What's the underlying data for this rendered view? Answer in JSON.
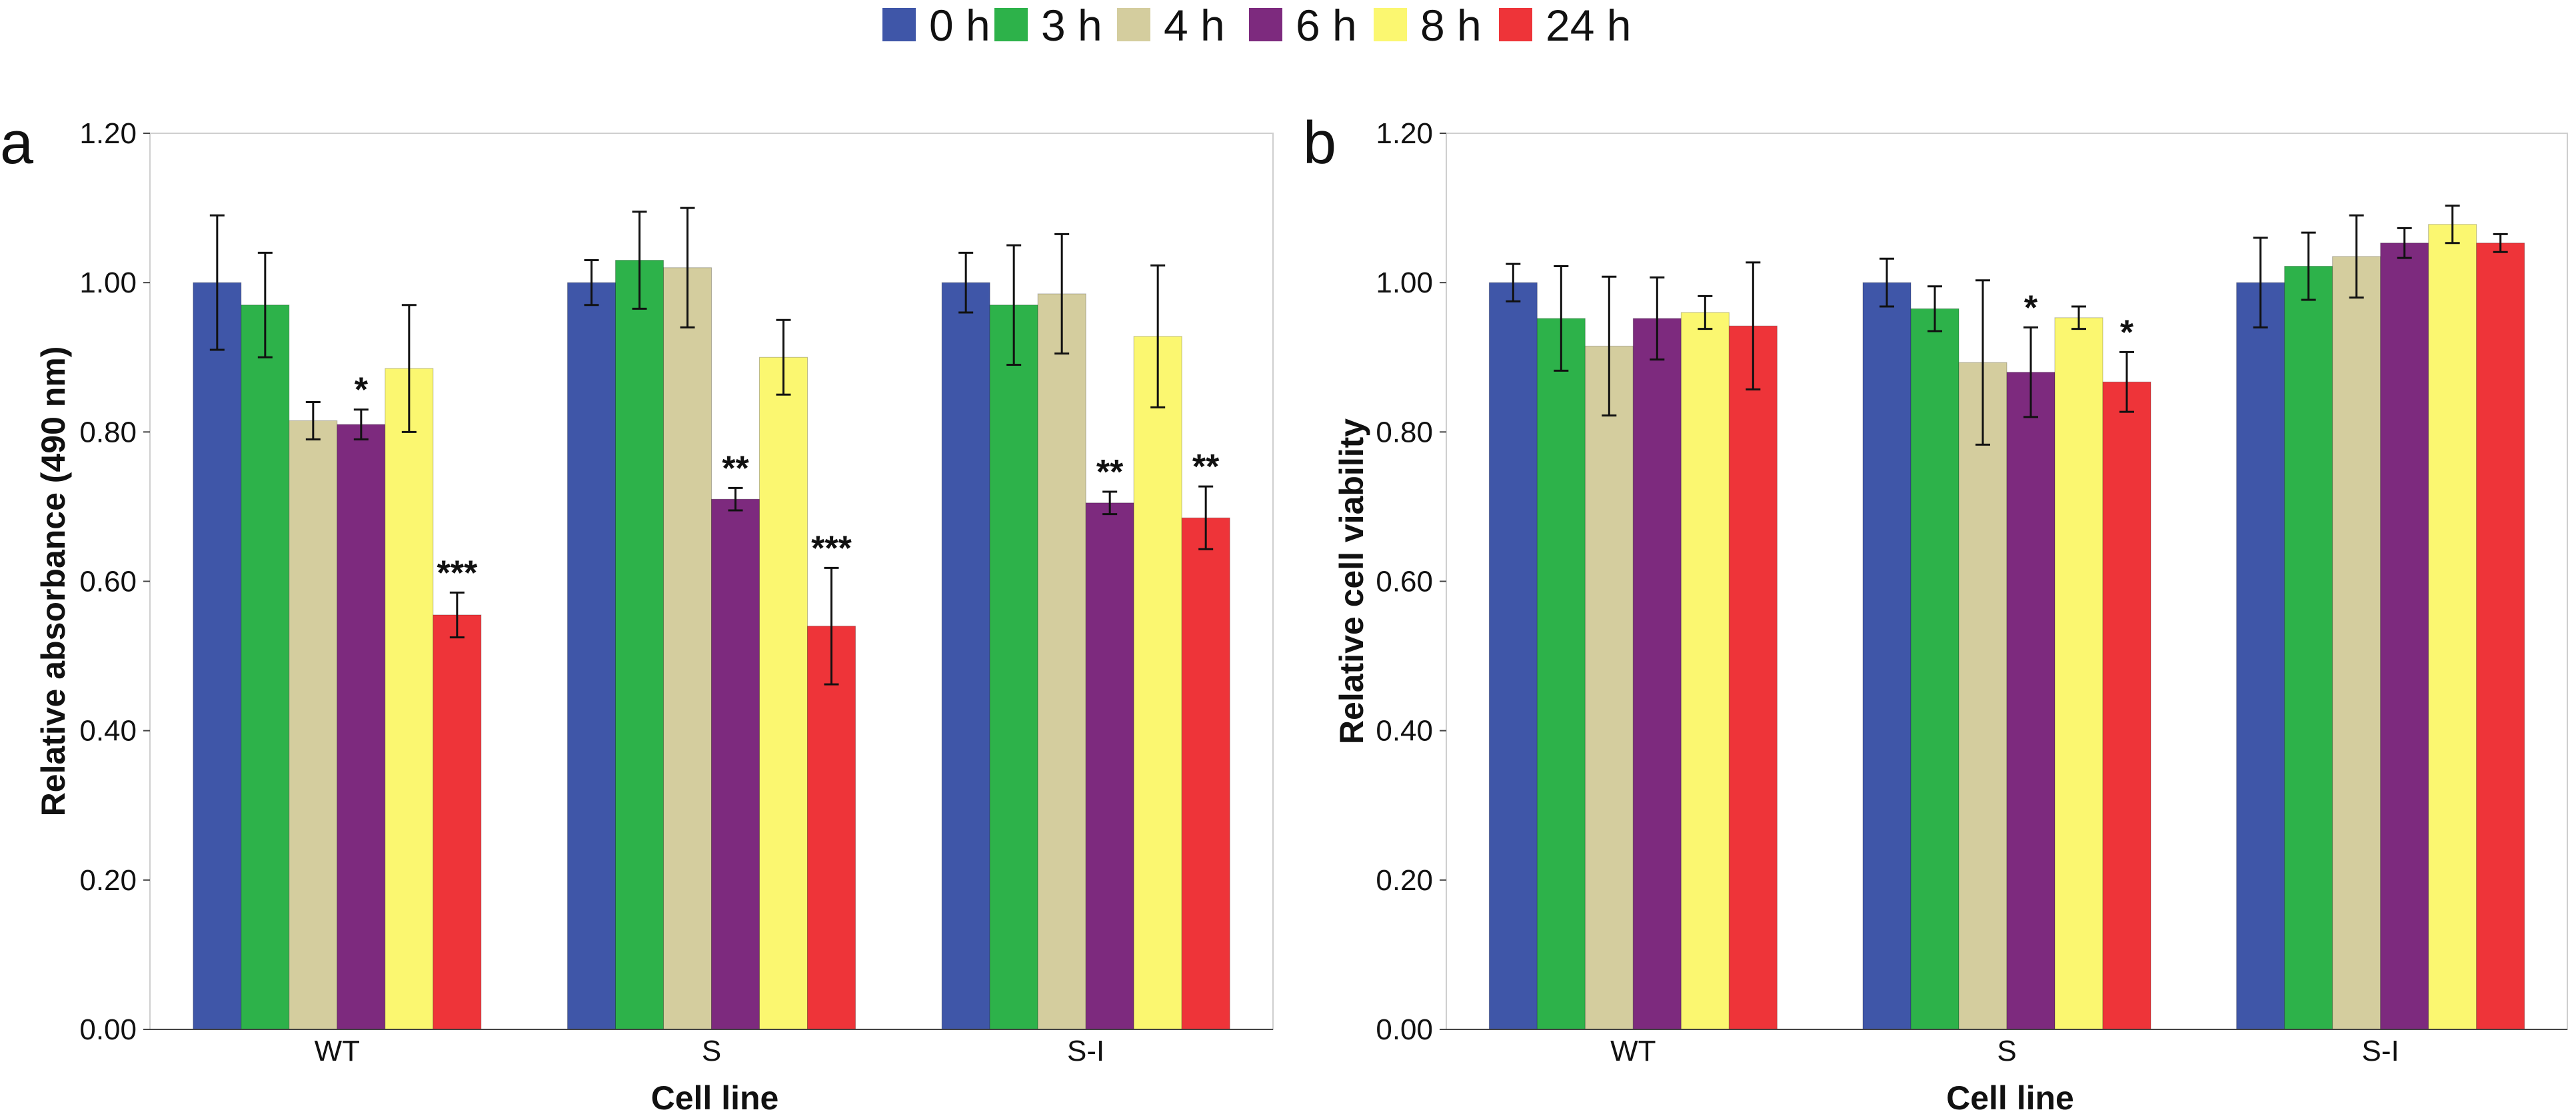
{
  "legend": {
    "series": [
      {
        "name": "0 h",
        "color": "#3F56A8"
      },
      {
        "name": "3 h",
        "color": "#2DB24A"
      },
      {
        "name": "4 h",
        "color": "#D4CD9E"
      },
      {
        "name": "6 h",
        "color": "#7D2A7E"
      },
      {
        "name": "8 h",
        "color": "#FBF770"
      },
      {
        "name": "24 h",
        "color": "#EE3439"
      }
    ]
  },
  "chart_data": [
    {
      "type": "bar",
      "panel_label": "a",
      "categories": [
        "WT",
        "S",
        "S-I"
      ],
      "xlabel": "Cell line",
      "ylabel": "Relative absorbance (490 nm)",
      "ylim": [
        0,
        1.2
      ],
      "yticks": [
        "0.00",
        "0.20",
        "0.40",
        "0.60",
        "0.80",
        "1.00",
        "1.20"
      ],
      "series": [
        {
          "name": "0 h",
          "values": [
            1.0,
            1.0,
            1.0
          ],
          "errors": [
            0.09,
            0.03,
            0.04
          ],
          "sig": [
            "",
            "",
            ""
          ]
        },
        {
          "name": "3 h",
          "values": [
            0.97,
            1.03,
            0.97
          ],
          "errors": [
            0.07,
            0.065,
            0.08
          ],
          "sig": [
            "",
            "",
            ""
          ]
        },
        {
          "name": "4 h",
          "values": [
            0.815,
            1.02,
            0.985
          ],
          "errors": [
            0.025,
            0.08,
            0.08
          ],
          "sig": [
            "",
            "",
            ""
          ]
        },
        {
          "name": "6 h",
          "values": [
            0.81,
            0.71,
            0.705
          ],
          "errors": [
            0.02,
            0.015,
            0.015
          ],
          "sig": [
            "*",
            "**",
            "**"
          ]
        },
        {
          "name": "8 h",
          "values": [
            0.885,
            0.9,
            0.928
          ],
          "errors": [
            0.085,
            0.05,
            0.095
          ],
          "sig": [
            "",
            "",
            ""
          ]
        },
        {
          "name": "24 h",
          "values": [
            0.555,
            0.54,
            0.685
          ],
          "errors": [
            0.03,
            0.078,
            0.042
          ],
          "sig": [
            "***",
            "***",
            "**"
          ]
        }
      ]
    },
    {
      "type": "bar",
      "panel_label": "b",
      "categories": [
        "WT",
        "S",
        "S-I"
      ],
      "xlabel": "Cell line",
      "ylabel": "Relative cell viability",
      "ylim": [
        0,
        1.2
      ],
      "yticks": [
        "0.00",
        "0.20",
        "0.40",
        "0.60",
        "0.80",
        "1.00",
        "1.20"
      ],
      "series": [
        {
          "name": "0 h",
          "values": [
            1.0,
            1.0,
            1.0
          ],
          "errors": [
            0.025,
            0.032,
            0.06
          ],
          "sig": [
            "",
            "",
            ""
          ]
        },
        {
          "name": "3 h",
          "values": [
            0.952,
            0.965,
            1.022
          ],
          "errors": [
            0.07,
            0.03,
            0.045
          ],
          "sig": [
            "",
            "",
            ""
          ]
        },
        {
          "name": "4 h",
          "values": [
            0.915,
            0.893,
            1.035
          ],
          "errors": [
            0.093,
            0.11,
            0.055
          ],
          "sig": [
            "",
            "",
            ""
          ]
        },
        {
          "name": "6 h",
          "values": [
            0.952,
            0.88,
            1.053
          ],
          "errors": [
            0.055,
            0.06,
            0.02
          ],
          "sig": [
            "",
            "*",
            ""
          ]
        },
        {
          "name": "8 h",
          "values": [
            0.96,
            0.953,
            1.078
          ],
          "errors": [
            0.022,
            0.015,
            0.025
          ],
          "sig": [
            "",
            "",
            ""
          ]
        },
        {
          "name": "24 h",
          "values": [
            0.942,
            0.867,
            1.053
          ],
          "errors": [
            0.085,
            0.04,
            0.012
          ],
          "sig": [
            "",
            "*",
            ""
          ]
        }
      ]
    }
  ]
}
